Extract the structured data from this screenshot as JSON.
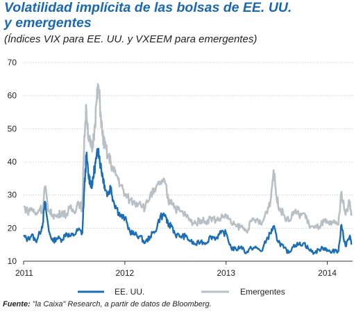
{
  "header": {
    "title_line1": "Volatilidad implícita de las bolsas de EE. UU.",
    "title_line2": "y emergentes",
    "subtitle": "(Índices VIX para EE. UU. y VXEEM para emergentes)"
  },
  "source": {
    "label": "Fuente:",
    "text": " \"la Caixa\" Research, a partir de datos de Bloomberg."
  },
  "colors": {
    "us": "#1b6db5",
    "em": "#b8bfc5",
    "title": "#1a68b0"
  },
  "chart_data": {
    "type": "line",
    "title": "Volatilidad implícita de las bolsas de EE. UU. y emergentes",
    "subtitle": "(Índices VIX para EE. UU. y VXEEM para emergentes)",
    "xlabel": "",
    "ylabel": "",
    "x_tick_labels": [
      "2011",
      "2012",
      "2013",
      "2014"
    ],
    "y_ticks": [
      10,
      20,
      30,
      40,
      50,
      60,
      70
    ],
    "xlim": [
      2011.0,
      2014.25
    ],
    "ylim": [
      10,
      70
    ],
    "grid": "horizontal",
    "legend_position": "bottom",
    "x": [
      2011.0,
      2011.04,
      2011.08,
      2011.12,
      2011.16,
      2011.19,
      2011.21,
      2011.25,
      2011.29,
      2011.33,
      2011.38,
      2011.42,
      2011.46,
      2011.5,
      2011.54,
      2011.58,
      2011.6,
      2011.62,
      2011.64,
      2011.66,
      2011.68,
      2011.7,
      2011.72,
      2011.74,
      2011.76,
      2011.78,
      2011.8,
      2011.83,
      2011.86,
      2011.89,
      2011.92,
      2011.96,
      2012.0,
      2012.05,
      2012.1,
      2012.15,
      2012.2,
      2012.25,
      2012.3,
      2012.35,
      2012.4,
      2012.43,
      2012.46,
      2012.5,
      2012.55,
      2012.6,
      2012.65,
      2012.7,
      2012.75,
      2012.8,
      2012.85,
      2012.9,
      2012.95,
      2013.0,
      2013.05,
      2013.1,
      2013.15,
      2013.2,
      2013.25,
      2013.3,
      2013.35,
      2013.4,
      2013.44,
      2013.47,
      2013.5,
      2013.53,
      2013.57,
      2013.62,
      2013.67,
      2013.72,
      2013.77,
      2013.82,
      2013.87,
      2013.92,
      2013.97,
      2014.0,
      2014.04,
      2014.08,
      2014.11,
      2014.14,
      2014.18,
      2014.22,
      2014.24
    ],
    "series": [
      {
        "name": "EE. UU.",
        "values": [
          17.5,
          16.5,
          18.0,
          16.0,
          18.5,
          21.5,
          28.0,
          19.0,
          16.0,
          17.0,
          16.5,
          18.5,
          17.5,
          18.0,
          19.5,
          18.5,
          32.0,
          42.0,
          36.0,
          34.0,
          33.0,
          38.0,
          41.0,
          44.0,
          39.0,
          36.0,
          33.0,
          30.0,
          32.5,
          28.0,
          26.0,
          23.5,
          23.0,
          19.0,
          18.0,
          17.5,
          15.5,
          17.5,
          19.0,
          23.5,
          24.0,
          20.5,
          21.0,
          18.0,
          17.5,
          17.5,
          16.0,
          15.0,
          16.0,
          15.5,
          17.5,
          17.0,
          18.5,
          18.5,
          14.0,
          13.5,
          14.5,
          12.5,
          14.0,
          14.0,
          13.0,
          16.5,
          18.5,
          20.5,
          17.0,
          15.5,
          14.0,
          12.5,
          15.0,
          15.0,
          15.5,
          13.5,
          12.5,
          13.5,
          14.0,
          13.5,
          12.5,
          13.5,
          13.0,
          21.0,
          14.5,
          17.5,
          15.0
        ]
      },
      {
        "name": "Emergentes",
        "values": [
          26.5,
          25.0,
          26.0,
          24.0,
          26.0,
          25.5,
          32.5,
          25.0,
          24.0,
          23.5,
          25.0,
          24.0,
          26.0,
          25.0,
          28.0,
          26.0,
          48.0,
          56.0,
          48.0,
          45.0,
          44.0,
          50.0,
          58.0,
          63.0,
          55.0,
          48.0,
          45.0,
          42.0,
          40.0,
          37.0,
          36.0,
          33.0,
          30.0,
          28.5,
          27.5,
          28.0,
          26.0,
          30.0,
          31.0,
          34.0,
          33.5,
          28.0,
          28.5,
          26.0,
          25.0,
          24.0,
          22.0,
          21.5,
          22.5,
          22.0,
          23.0,
          22.5,
          23.0,
          24.0,
          21.5,
          20.5,
          20.5,
          19.0,
          22.0,
          22.5,
          21.0,
          25.0,
          28.5,
          37.5,
          29.0,
          26.0,
          24.0,
          22.0,
          25.0,
          24.0,
          24.5,
          21.0,
          20.0,
          20.5,
          22.0,
          21.5,
          21.0,
          22.0,
          21.0,
          31.0,
          24.0,
          28.0,
          24.5
        ]
      }
    ]
  }
}
